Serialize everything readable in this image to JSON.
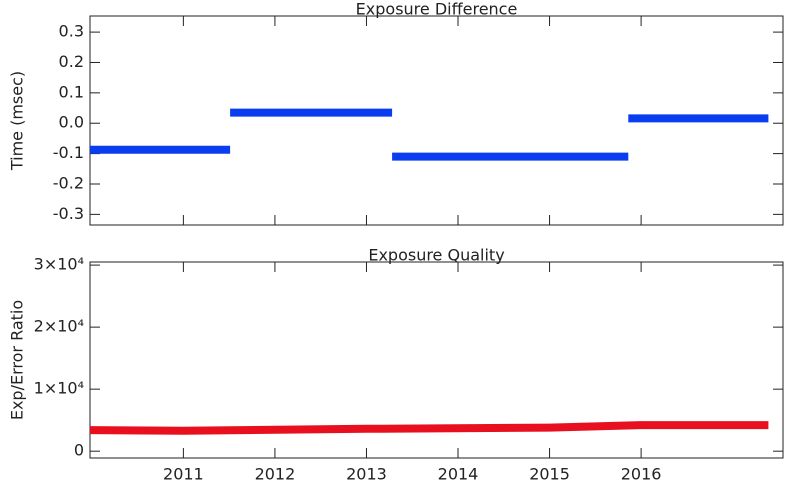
{
  "chart_data": [
    {
      "type": "line",
      "title": "Exposure Difference",
      "y_label": "Time (msec)",
      "x": [
        2009.98,
        2011.51,
        2011.51,
        2011.51,
        2013.28,
        2013.28,
        2013.28,
        2015.86,
        2015.86,
        2015.86,
        2017.39
      ],
      "values": [
        -0.087,
        -0.087,
        null,
        0.035,
        0.035,
        null,
        -0.11,
        -0.11,
        null,
        0.016,
        0.016
      ],
      "color": "#0a3cf0",
      "xlim": [
        2009.98,
        2017.55
      ],
      "xticks": [
        2011,
        2012,
        2013,
        2014,
        2015,
        2016
      ],
      "show_xtick_labels": false,
      "ylim": [
        -0.335,
        0.353
      ],
      "yticks": [
        0.3,
        0.2,
        0.1,
        {
          "value": 0,
          "label": "0.0"
        },
        -0.1,
        -0.2,
        -0.3
      ]
    },
    {
      "type": "line",
      "title": "Exposure Quality",
      "y_label": "Exp/Error Ratio",
      "x": [
        2009.98,
        2011.0,
        2013.0,
        2015.0,
        2016.0,
        2017.39
      ],
      "values": [
        3400,
        3300,
        3600,
        3800,
        4200,
        4200
      ],
      "color": "#e8101e",
      "xlim": [
        2009.98,
        2017.55
      ],
      "xticks": [
        2011,
        2012,
        2013,
        2014,
        2015,
        2016
      ],
      "show_xtick_labels": true,
      "ylim": [
        -1100,
        30500
      ],
      "yticks": [
        0,
        {
          "value": 10000,
          "label": "1×10⁴"
        },
        {
          "value": 20000,
          "label": "2×10⁴"
        },
        {
          "value": 30000,
          "label": "3×10⁴"
        }
      ]
    }
  ]
}
